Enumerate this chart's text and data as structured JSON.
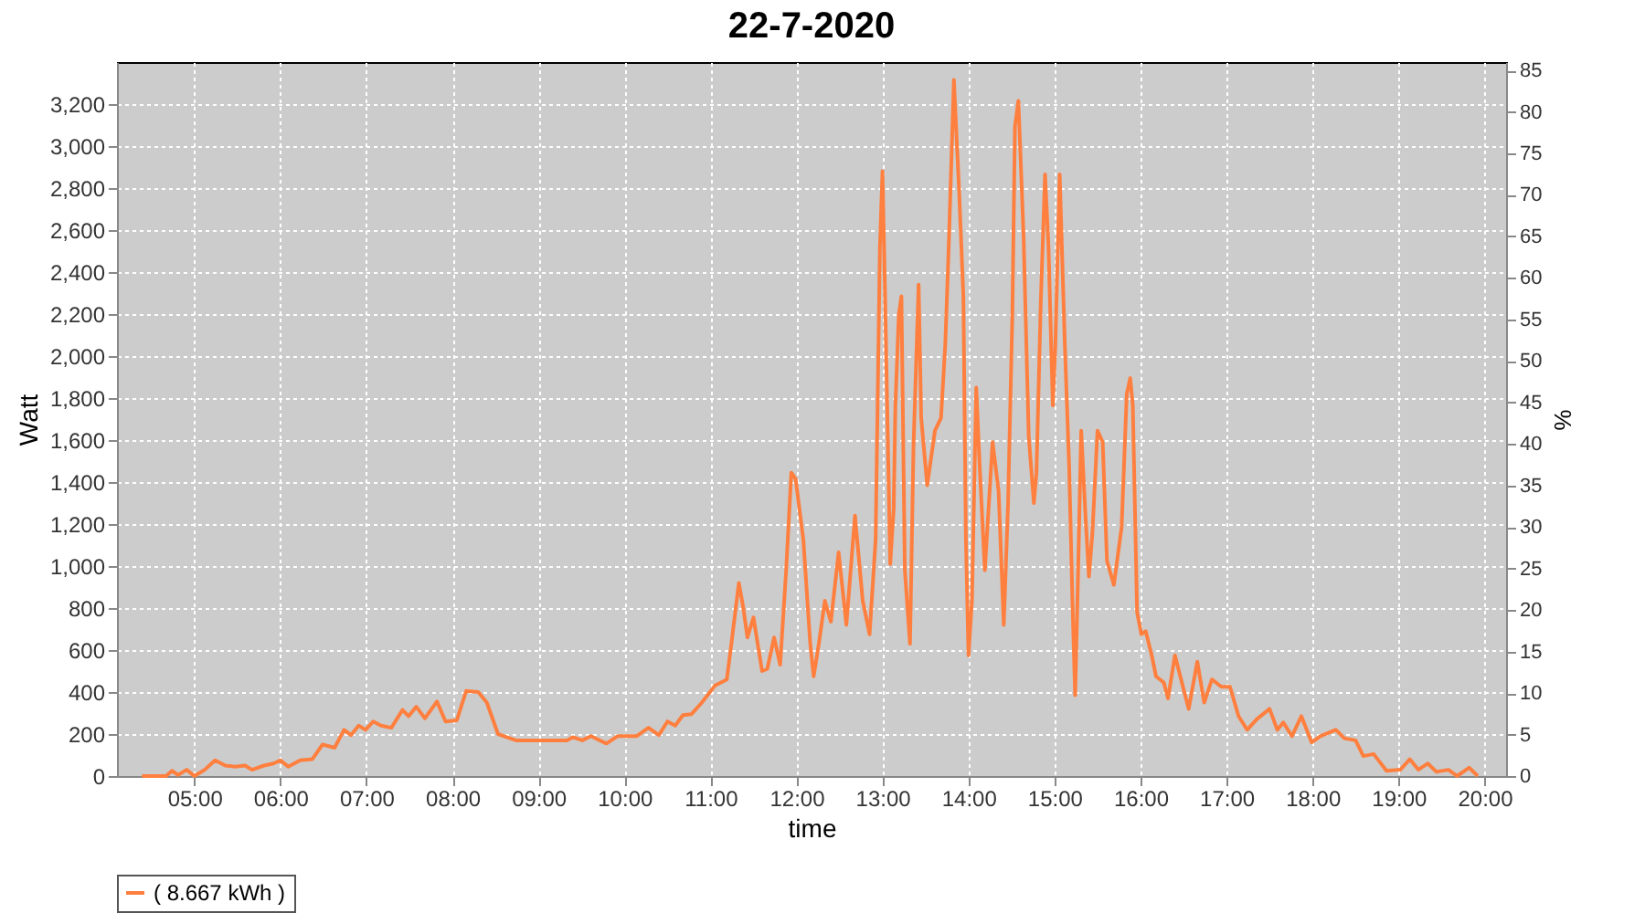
{
  "chart_data": {
    "type": "line",
    "title": "22-7-2020",
    "xlabel": "time",
    "ylabel": "Watt",
    "y2label": "%",
    "x": [
      4.39,
      4.67,
      4.74,
      4.81,
      4.91,
      5.0,
      5.12,
      5.24,
      5.36,
      5.47,
      5.59,
      5.67,
      5.81,
      5.92,
      6.0,
      6.09,
      6.23,
      6.37,
      6.49,
      6.63,
      6.74,
      6.82,
      6.91,
      6.99,
      7.08,
      7.17,
      7.29,
      7.42,
      7.49,
      7.58,
      7.68,
      7.82,
      7.92,
      8.05,
      8.16,
      8.3,
      8.4,
      8.53,
      8.63,
      8.74,
      9.33,
      9.4,
      9.51,
      9.61,
      9.79,
      9.92,
      10.14,
      10.28,
      10.4,
      10.5,
      10.59,
      10.68,
      10.78,
      10.9,
      11.05,
      11.19,
      11.24,
      11.33,
      11.38,
      11.43,
      11.5,
      11.6,
      11.66,
      11.74,
      11.81,
      11.88,
      11.94,
      11.99,
      12.08,
      12.16,
      12.2,
      12.26,
      12.33,
      12.4,
      12.49,
      12.58,
      12.68,
      12.77,
      12.85,
      12.92,
      12.97,
      13.0,
      13.03,
      13.09,
      13.13,
      13.15,
      13.19,
      13.22,
      13.26,
      13.32,
      13.36,
      13.42,
      13.45,
      13.52,
      13.61,
      13.68,
      13.73,
      13.77,
      13.83,
      13.89,
      13.94,
      13.97,
      14.0,
      14.04,
      14.09,
      14.13,
      14.19,
      14.28,
      14.35,
      14.41,
      14.46,
      14.51,
      14.54,
      14.58,
      14.64,
      14.7,
      14.76,
      14.79,
      14.84,
      14.89,
      14.93,
      14.98,
      15.01,
      15.06,
      15.12,
      15.17,
      15.21,
      15.24,
      15.27,
      15.31,
      15.36,
      15.4,
      15.44,
      15.5,
      15.56,
      15.61,
      15.69,
      15.78,
      15.84,
      15.88,
      15.91,
      15.96,
      16.01,
      16.06,
      16.13,
      16.18,
      16.27,
      16.32,
      16.4,
      16.49,
      16.56,
      16.66,
      16.74,
      16.83,
      16.94,
      17.04,
      17.14,
      17.24,
      17.35,
      17.5,
      17.59,
      17.66,
      17.76,
      17.87,
      17.99,
      18.09,
      18.27,
      18.37,
      18.5,
      18.59,
      18.71,
      18.86,
      19.02,
      19.13,
      19.23,
      19.34,
      19.44,
      19.58,
      19.68,
      19.82,
      19.92
    ],
    "series": [
      {
        "name": "( 8.667 kWh )",
        "color": "#ff7f3f",
        "values": [
          0,
          0,
          25,
          5,
          30,
          0,
          30,
          75,
          50,
          45,
          50,
          30,
          50,
          60,
          75,
          45,
          75,
          80,
          150,
          135,
          220,
          195,
          240,
          220,
          260,
          240,
          230,
          315,
          285,
          330,
          275,
          355,
          260,
          265,
          405,
          400,
          350,
          200,
          185,
          170,
          170,
          185,
          170,
          190,
          155,
          190,
          190,
          230,
          195,
          260,
          240,
          290,
          295,
          350,
          430,
          460,
          620,
          920,
          805,
          660,
          755,
          500,
          510,
          660,
          530,
          980,
          1445,
          1415,
          1125,
          630,
          475,
          630,
          835,
          735,
          1065,
          720,
          1240,
          835,
          675,
          1125,
          2520,
          2880,
          2285,
          1010,
          1270,
          1765,
          2200,
          2285,
          980,
          630,
          1560,
          2340,
          1705,
          1385,
          1645,
          1705,
          2055,
          2520,
          3315,
          2795,
          2285,
          1125,
          575,
          835,
          1850,
          1475,
          980,
          1590,
          1355,
          720,
          1300,
          2200,
          3095,
          3215,
          2575,
          1620,
          1300,
          1445,
          2255,
          2865,
          2520,
          1765,
          2055,
          2865,
          2055,
          1475,
          805,
          385,
          895,
          1645,
          1240,
          950,
          1155,
          1645,
          1590,
          1025,
          910,
          1185,
          1820,
          1895,
          1765,
          780,
          675,
          690,
          575,
          475,
          445,
          370,
          575,
          430,
          320,
          545,
          350,
          460,
          425,
          425,
          285,
          220,
          270,
          320,
          220,
          255,
          190,
          285,
          160,
          190,
          220,
          180,
          170,
          95,
          105,
          25,
          30,
          80,
          30,
          60,
          20,
          30,
          0,
          40,
          0
        ]
      }
    ],
    "xlim": [
      4.1,
      20.25
    ],
    "xticks": [
      {
        "value": 5,
        "label": "05:00"
      },
      {
        "value": 6,
        "label": "06:00"
      },
      {
        "value": 7,
        "label": "07:00"
      },
      {
        "value": 8,
        "label": "08:00"
      },
      {
        "value": 9,
        "label": "09:00"
      },
      {
        "value": 10,
        "label": "10:00"
      },
      {
        "value": 11,
        "label": "11:00"
      },
      {
        "value": 12,
        "label": "12:00"
      },
      {
        "value": 13,
        "label": "13:00"
      },
      {
        "value": 14,
        "label": "14:00"
      },
      {
        "value": 15,
        "label": "15:00"
      },
      {
        "value": 16,
        "label": "16:00"
      },
      {
        "value": 17,
        "label": "17:00"
      },
      {
        "value": 18,
        "label": "18:00"
      },
      {
        "value": 19,
        "label": "19:00"
      },
      {
        "value": 20,
        "label": "20:00"
      }
    ],
    "ylim": [
      0,
      3400
    ],
    "yticks": [
      0,
      200,
      400,
      600,
      800,
      {
        "value": 1000,
        "label": "1,000"
      },
      {
        "value": 1200,
        "label": "1,200"
      },
      {
        "value": 1400,
        "label": "1,400"
      },
      {
        "value": 1600,
        "label": "1,600"
      },
      {
        "value": 1800,
        "label": "1,800"
      },
      {
        "value": 2000,
        "label": "2,000"
      },
      {
        "value": 2200,
        "label": "2,200"
      },
      {
        "value": 2400,
        "label": "2,400"
      },
      {
        "value": 2600,
        "label": "2,600"
      },
      {
        "value": 2800,
        "label": "2,800"
      },
      {
        "value": 3000,
        "label": "3,000"
      },
      {
        "value": 3200,
        "label": "3,200"
      }
    ],
    "y2lim": [
      0,
      86
    ],
    "y2ticks": [
      0,
      5,
      10,
      15,
      20,
      25,
      30,
      35,
      40,
      45,
      50,
      55,
      60,
      65,
      70,
      75,
      80,
      85
    ],
    "grid": true,
    "legend": "bottom",
    "marker": "none",
    "line_style": "solid"
  }
}
